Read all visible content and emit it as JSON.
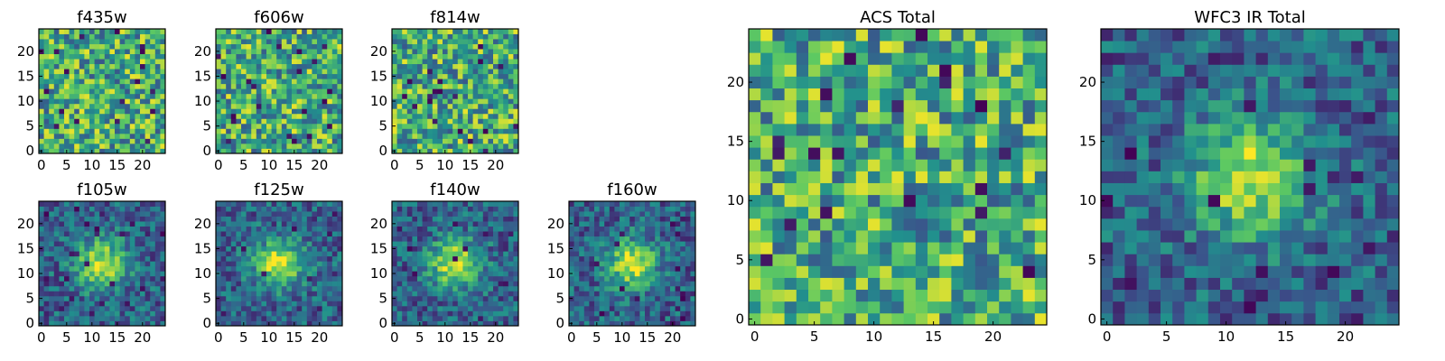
{
  "chart_data": [
    {
      "type": "heatmap",
      "title": "f435w",
      "size": 25,
      "xticks": [
        0,
        5,
        10,
        15,
        20
      ],
      "yticks": [
        0,
        5,
        10,
        15,
        20
      ],
      "xlim": [
        -0.5,
        24.5
      ],
      "ylim": [
        -0.5,
        24.5
      ],
      "colormap": "viridis",
      "pattern": "noise"
    },
    {
      "type": "heatmap",
      "title": "f606w",
      "size": 25,
      "xticks": [
        0,
        5,
        10,
        15,
        20
      ],
      "yticks": [
        0,
        5,
        10,
        15,
        20
      ],
      "xlim": [
        -0.5,
        24.5
      ],
      "ylim": [
        -0.5,
        24.5
      ],
      "colormap": "viridis",
      "pattern": "noise"
    },
    {
      "type": "heatmap",
      "title": "f814w",
      "size": 25,
      "xticks": [
        0,
        5,
        10,
        15,
        20
      ],
      "yticks": [
        0,
        5,
        10,
        15,
        20
      ],
      "xlim": [
        -0.5,
        24.5
      ],
      "ylim": [
        -0.5,
        24.5
      ],
      "colormap": "viridis",
      "pattern": "noise"
    },
    {
      "type": "heatmap",
      "title": "f105w",
      "size": 25,
      "xticks": [
        0,
        5,
        10,
        15,
        20
      ],
      "yticks": [
        0,
        5,
        10,
        15,
        20
      ],
      "xlim": [
        -0.5,
        24.5
      ],
      "ylim": [
        -0.5,
        24.5
      ],
      "colormap": "viridis",
      "pattern": "central-source"
    },
    {
      "type": "heatmap",
      "title": "f125w",
      "size": 25,
      "xticks": [
        0,
        5,
        10,
        15,
        20
      ],
      "yticks": [
        0,
        5,
        10,
        15,
        20
      ],
      "xlim": [
        -0.5,
        24.5
      ],
      "ylim": [
        -0.5,
        24.5
      ],
      "colormap": "viridis",
      "pattern": "central-source"
    },
    {
      "type": "heatmap",
      "title": "f140w",
      "size": 25,
      "xticks": [
        0,
        5,
        10,
        15,
        20
      ],
      "yticks": [
        0,
        5,
        10,
        15,
        20
      ],
      "xlim": [
        -0.5,
        24.5
      ],
      "ylim": [
        -0.5,
        24.5
      ],
      "colormap": "viridis",
      "pattern": "central-source"
    },
    {
      "type": "heatmap",
      "title": "f160w",
      "size": 25,
      "xticks": [
        0,
        5,
        10,
        15,
        20
      ],
      "yticks": [
        0,
        5,
        10,
        15,
        20
      ],
      "xlim": [
        -0.5,
        24.5
      ],
      "ylim": [
        -0.5,
        24.5
      ],
      "colormap": "viridis",
      "pattern": "central-source"
    },
    {
      "type": "heatmap",
      "title": "ACS Total",
      "size": 25,
      "xticks": [
        0,
        5,
        10,
        15,
        20
      ],
      "yticks": [
        0,
        5,
        10,
        15,
        20
      ],
      "xlim": [
        -0.5,
        24.5
      ],
      "ylim": [
        -0.5,
        24.5
      ],
      "colormap": "viridis",
      "pattern": "noise"
    },
    {
      "type": "heatmap",
      "title": "WFC3 IR Total",
      "size": 25,
      "xticks": [
        0,
        5,
        10,
        15,
        20
      ],
      "yticks": [
        0,
        5,
        10,
        15,
        20
      ],
      "xlim": [
        -0.5,
        24.5
      ],
      "ylim": [
        -0.5,
        24.5
      ],
      "colormap": "viridis",
      "pattern": "central-source"
    }
  ],
  "colors": {
    "viridis": [
      "#440154",
      "#3b528b",
      "#21908d",
      "#5dc962",
      "#fde725"
    ]
  }
}
